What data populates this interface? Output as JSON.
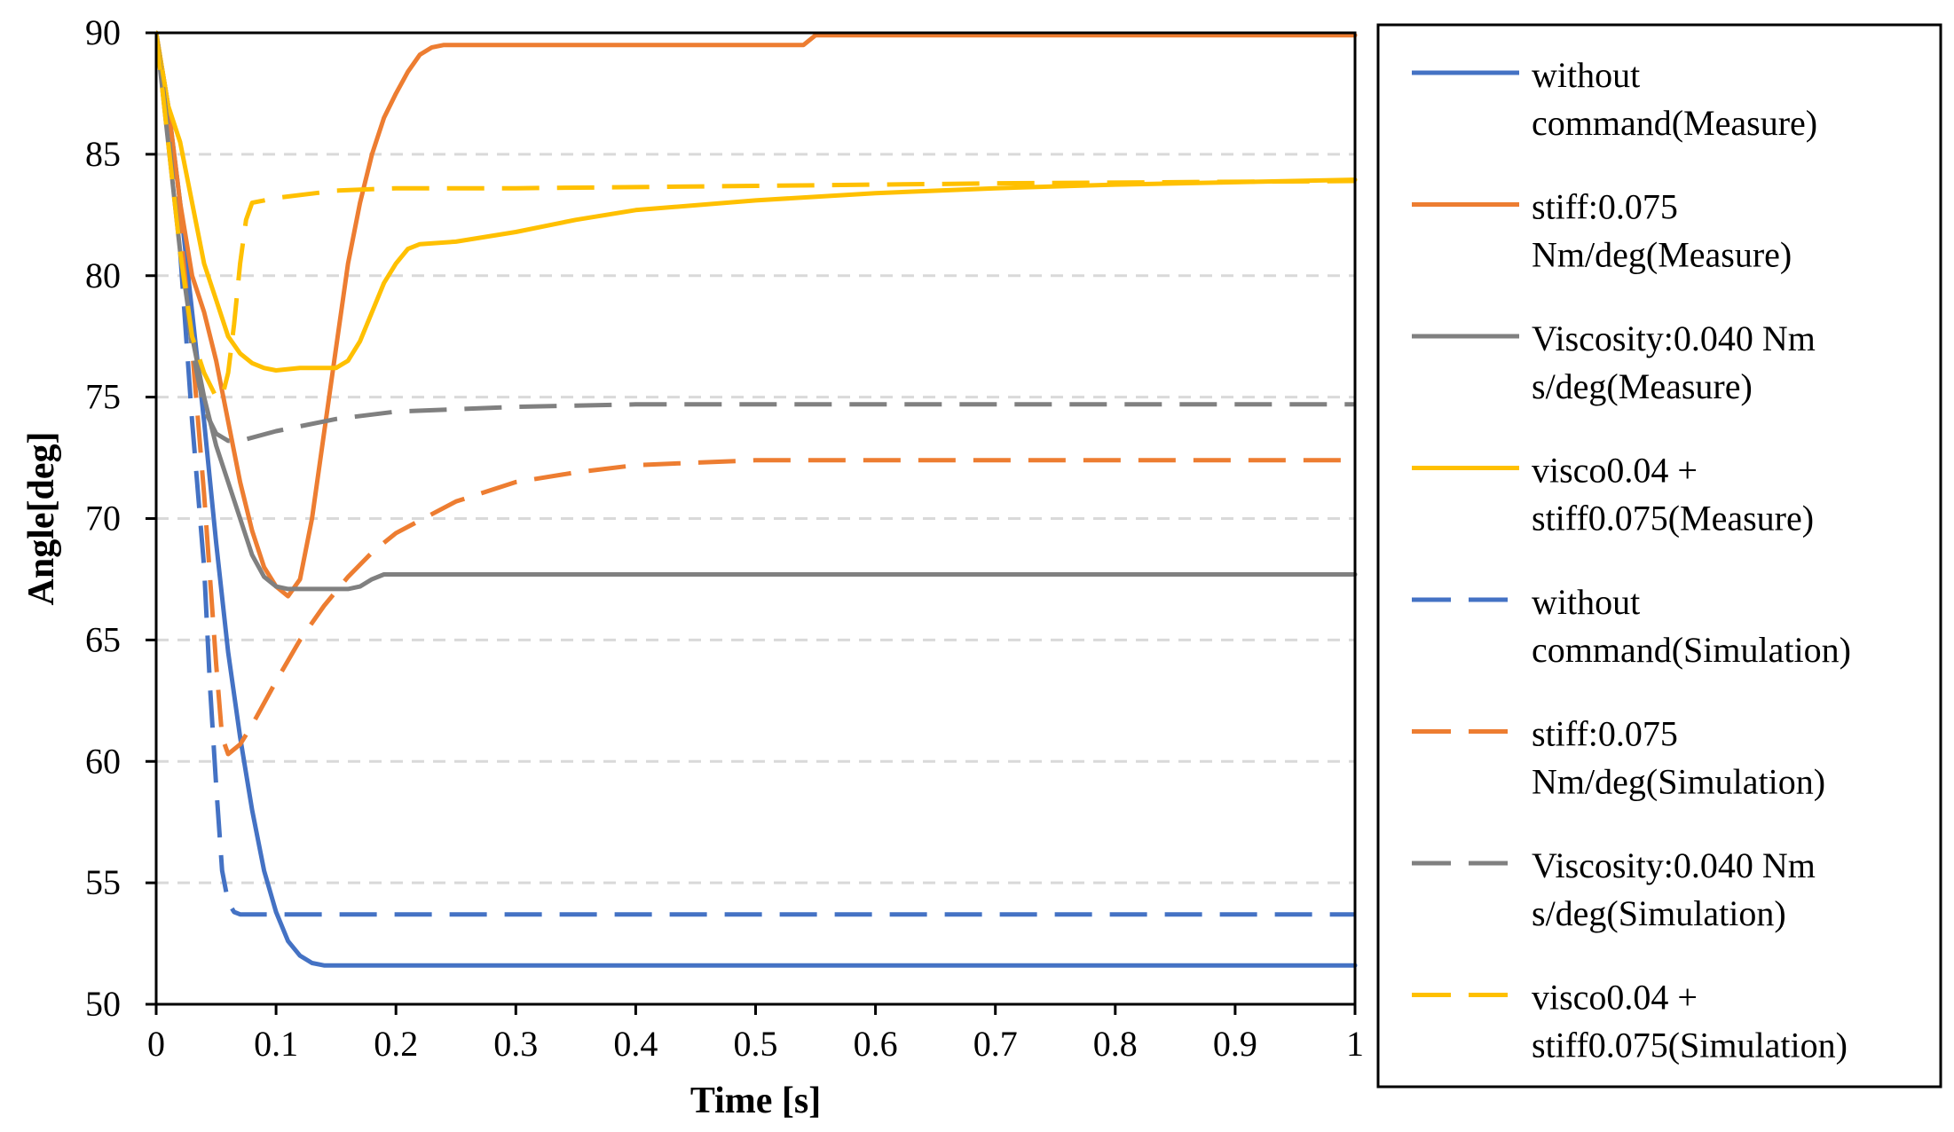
{
  "chart_data": {
    "type": "line",
    "title": "",
    "xlabel": "Time [s]",
    "ylabel": "Angle[deg]",
    "xlim": [
      0,
      1
    ],
    "ylim": [
      50,
      90
    ],
    "xticks": [
      "0",
      "0.1",
      "0.2",
      "0.3",
      "0.4",
      "0.5",
      "0.6",
      "0.7",
      "0.8",
      "0.9",
      "1"
    ],
    "yticks": [
      "50",
      "55",
      "60",
      "65",
      "70",
      "75",
      "80",
      "85",
      "90"
    ],
    "grid": "horizontal dashed",
    "legend": "right",
    "series": [
      {
        "name": "without command(Measure)",
        "legend_lines": [
          "without",
          "command(Measure)"
        ],
        "color": "#4472C4",
        "style": "solid",
        "x": [
          0,
          0.01,
          0.02,
          0.03,
          0.04,
          0.05,
          0.06,
          0.07,
          0.08,
          0.09,
          0.1,
          0.11,
          0.12,
          0.13,
          0.14,
          0.15,
          0.2,
          0.5,
          1.0
        ],
        "y": [
          90,
          87,
          83,
          78.5,
          74,
          69,
          64.5,
          61,
          58,
          55.5,
          53.8,
          52.6,
          52,
          51.7,
          51.6,
          51.6,
          51.6,
          51.6,
          51.6
        ]
      },
      {
        "name": "stiff:0.075 Nm/deg(Measure)",
        "legend_lines": [
          "stiff:0.075",
          "Nm/deg(Measure)"
        ],
        "color": "#ED7D31",
        "style": "solid",
        "x": [
          0,
          0.01,
          0.02,
          0.03,
          0.04,
          0.05,
          0.06,
          0.07,
          0.08,
          0.09,
          0.1,
          0.11,
          0.12,
          0.13,
          0.14,
          0.15,
          0.16,
          0.17,
          0.18,
          0.19,
          0.2,
          0.21,
          0.22,
          0.23,
          0.24,
          0.25,
          0.3,
          0.5,
          0.54,
          0.55,
          0.6,
          1.0
        ],
        "y": [
          90,
          87,
          83,
          80,
          78.5,
          76.5,
          74,
          71.5,
          69.5,
          68,
          67.2,
          66.8,
          67.5,
          70,
          73.5,
          77,
          80.5,
          83,
          85,
          86.5,
          87.5,
          88.4,
          89.1,
          89.4,
          89.5,
          89.5,
          89.5,
          89.5,
          89.5,
          89.9,
          89.9,
          89.9
        ]
      },
      {
        "name": "Viscosity:0.040 Nm s/deg(Measure)",
        "legend_lines": [
          "Viscosity:0.040 Nm",
          "s/deg(Measure)"
        ],
        "color": "#808080",
        "style": "solid",
        "x": [
          0,
          0.01,
          0.02,
          0.03,
          0.04,
          0.05,
          0.06,
          0.07,
          0.08,
          0.09,
          0.1,
          0.11,
          0.12,
          0.14,
          0.16,
          0.17,
          0.18,
          0.19,
          0.2,
          0.5,
          1.0
        ],
        "y": [
          90,
          85.5,
          81,
          77.5,
          75,
          73,
          71.5,
          70,
          68.5,
          67.6,
          67.2,
          67.1,
          67.1,
          67.1,
          67.1,
          67.2,
          67.5,
          67.7,
          67.7,
          67.7,
          67.7
        ]
      },
      {
        "name": "visco0.04 + stiff0.075(Measure)",
        "legend_lines": [
          "visco0.04 +",
          "stiff0.075(Measure)"
        ],
        "color": "#FFC000",
        "style": "solid",
        "x": [
          0,
          0.01,
          0.02,
          0.03,
          0.04,
          0.05,
          0.06,
          0.07,
          0.08,
          0.09,
          0.1,
          0.12,
          0.15,
          0.16,
          0.17,
          0.18,
          0.19,
          0.2,
          0.21,
          0.22,
          0.25,
          0.3,
          0.35,
          0.4,
          0.5,
          0.6,
          0.7,
          0.8,
          0.9,
          1.0
        ],
        "y": [
          90,
          87,
          85.5,
          83,
          80.5,
          79,
          77.5,
          76.8,
          76.4,
          76.2,
          76.1,
          76.2,
          76.2,
          76.5,
          77.3,
          78.5,
          79.7,
          80.5,
          81.1,
          81.3,
          81.4,
          81.8,
          82.3,
          82.7,
          83.1,
          83.4,
          83.6,
          83.75,
          83.85,
          83.95
        ]
      },
      {
        "name": "without command(Simulation)",
        "legend_lines": [
          "without",
          "command(Simulation)"
        ],
        "color": "#4472C4",
        "style": "dashed",
        "x": [
          0,
          0.01,
          0.02,
          0.03,
          0.04,
          0.045,
          0.05,
          0.055,
          0.06,
          0.065,
          0.07,
          0.1,
          0.5,
          1.0
        ],
        "y": [
          90,
          86,
          81,
          74,
          68,
          63,
          59,
          55.5,
          54.2,
          53.8,
          53.7,
          53.7,
          53.7,
          53.7
        ]
      },
      {
        "name": "stiff:0.075 Nm/deg(Simulation)",
        "legend_lines": [
          "stiff:0.075",
          "Nm/deg(Simulation)"
        ],
        "color": "#ED7D31",
        "style": "dashed",
        "x": [
          0,
          0.01,
          0.02,
          0.03,
          0.04,
          0.05,
          0.055,
          0.06,
          0.07,
          0.08,
          0.1,
          0.12,
          0.14,
          0.16,
          0.18,
          0.2,
          0.25,
          0.3,
          0.35,
          0.4,
          0.45,
          0.5,
          0.6,
          0.7,
          1.0
        ],
        "y": [
          90,
          86,
          82,
          77,
          71,
          64,
          61,
          60.3,
          60.7,
          61.5,
          63.3,
          65,
          66.4,
          67.6,
          68.6,
          69.4,
          70.7,
          71.5,
          71.9,
          72.2,
          72.3,
          72.4,
          72.4,
          72.4,
          72.4
        ]
      },
      {
        "name": "Viscosity:0.040 Nm s/deg(Simulation)",
        "legend_lines": [
          "Viscosity:0.040 Nm",
          "s/deg(Simulation)"
        ],
        "color": "#808080",
        "style": "dashed",
        "x": [
          0,
          0.01,
          0.02,
          0.03,
          0.04,
          0.05,
          0.06,
          0.07,
          0.1,
          0.15,
          0.2,
          0.3,
          0.4,
          0.5,
          0.6,
          1.0
        ],
        "y": [
          90,
          86,
          81,
          77,
          74.5,
          73.5,
          73.2,
          73.2,
          73.6,
          74.1,
          74.4,
          74.6,
          74.7,
          74.7,
          74.7,
          74.7
        ]
      },
      {
        "name": "visco0.04 + stiff0.075(Simulation)",
        "legend_lines": [
          "visco0.04 +",
          "stiff0.075(Simulation)"
        ],
        "color": "#FFC000",
        "style": "dashed",
        "x": [
          0,
          0.01,
          0.02,
          0.03,
          0.04,
          0.05,
          0.055,
          0.06,
          0.065,
          0.07,
          0.075,
          0.08,
          0.09,
          0.1,
          0.15,
          0.2,
          0.3,
          0.5,
          0.7,
          1.0
        ],
        "y": [
          90,
          85.5,
          81,
          77.5,
          76,
          75,
          75,
          76,
          78,
          80.5,
          82.3,
          83,
          83.1,
          83.2,
          83.5,
          83.6,
          83.6,
          83.7,
          83.8,
          83.9
        ]
      }
    ]
  }
}
